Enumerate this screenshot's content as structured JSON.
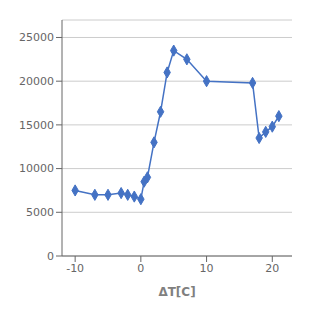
{
  "chart_data": {
    "type": "line",
    "x_label": "ΔT[C]",
    "x": [
      -10,
      -7,
      -5,
      -3,
      -2,
      -1,
      0,
      0.5,
      1,
      2,
      3,
      4,
      5,
      7,
      10,
      17,
      18,
      19,
      20,
      21
    ],
    "values": [
      7500,
      7000,
      7000,
      7200,
      7000,
      6800,
      6500,
      8500,
      9000,
      13000,
      16500,
      21000,
      23500,
      22500,
      20000,
      19800,
      13500,
      14200,
      14800,
      16000
    ],
    "color": "#4472C4",
    "marker": "diamond",
    "xlim": [
      -12,
      23
    ],
    "xticks": [
      -10,
      0,
      10,
      20
    ],
    "ylim": [
      0,
      27000
    ],
    "yticks": [
      0,
      5000,
      10000,
      15000,
      20000,
      25000
    ],
    "grid": true
  }
}
